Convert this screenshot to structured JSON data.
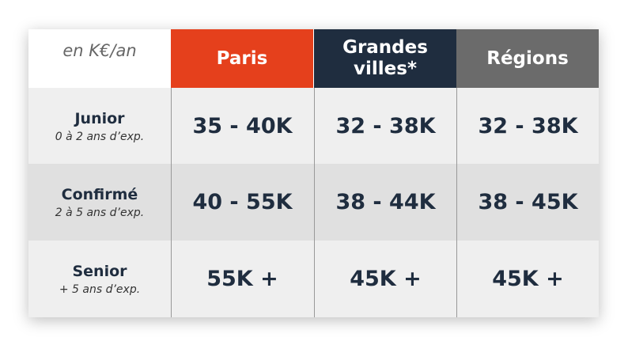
{
  "unit": "en K€/an",
  "columns": [
    {
      "label": "Paris",
      "color": "#e5401c"
    },
    {
      "label": "Grandes villes*",
      "color": "#1f2d3f"
    },
    {
      "label": "Régions",
      "color": "#6b6b6b"
    }
  ],
  "rows": [
    {
      "level": "Junior",
      "experience": "0 à 2 ans d’exp.",
      "values": [
        "35 - 40K",
        "32 - 38K",
        "32 - 38K"
      ]
    },
    {
      "level": "Confirmé",
      "experience": "2 à 5 ans d’exp.",
      "values": [
        "40 - 55K",
        "38 - 44K",
        "38 - 45K"
      ]
    },
    {
      "level": "Senior",
      "experience": "+ 5 ans d’exp.",
      "values": [
        "55K +",
        "45K +",
        "45K +"
      ]
    }
  ]
}
